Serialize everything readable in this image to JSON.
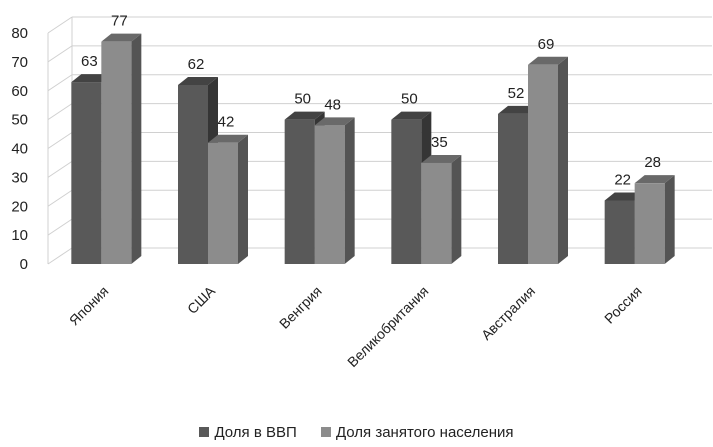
{
  "chart_data": {
    "type": "bar",
    "categories": [
      "Япония",
      "США",
      "Венгрия",
      "Великобритания",
      "Австралия",
      "Россия"
    ],
    "series": [
      {
        "name": "Доля в ВВП",
        "values": [
          63,
          62,
          50,
          50,
          52,
          22
        ],
        "color": "#595959"
      },
      {
        "name": "Доля занятого населения",
        "values": [
          77,
          42,
          48,
          35,
          69,
          28
        ],
        "color": "#8c8c8c"
      }
    ],
    "title": "",
    "xlabel": "",
    "ylabel": "",
    "ylim": [
      0,
      80
    ],
    "yticks": [
      0,
      10,
      20,
      30,
      40,
      50,
      60,
      70,
      80
    ],
    "grid": true,
    "style": "3d-clustered-column",
    "legend_position": "bottom"
  }
}
